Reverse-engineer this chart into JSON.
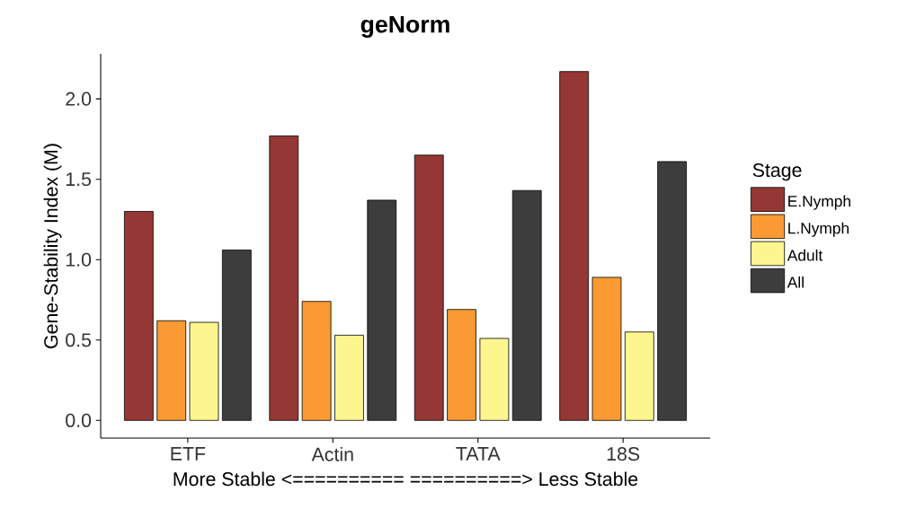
{
  "chart_data": {
    "type": "bar",
    "title": "geNorm",
    "xlabel": "More Stable <========== ==========> Less Stable",
    "ylabel": "Gene-Stability Index (M)",
    "legend_title": "Stage",
    "categories": [
      "ETF",
      "Actin",
      "TATA",
      "18S"
    ],
    "series": [
      {
        "name": "E.Nymph",
        "color": "#953735",
        "values": [
          1.3,
          1.77,
          1.65,
          2.17
        ]
      },
      {
        "name": "L.Nymph",
        "color": "#fb9a33",
        "values": [
          0.62,
          0.74,
          0.69,
          0.89
        ]
      },
      {
        "name": "Adult",
        "color": "#fdf68f",
        "values": [
          0.61,
          0.53,
          0.51,
          0.55
        ]
      },
      {
        "name": "All",
        "color": "#3d3d3d",
        "values": [
          1.06,
          1.37,
          1.43,
          1.61
        ]
      }
    ],
    "ylim": [
      -0.11,
      2.28
    ],
    "yticks": [
      {
        "value": 0,
        "label": "0.0"
      },
      {
        "value": 0.5,
        "label": "0.5"
      },
      {
        "value": 1,
        "label": "1.0"
      },
      {
        "value": 1.5,
        "label": "1.5"
      },
      {
        "value": 2,
        "label": "2.0"
      }
    ],
    "grid": false,
    "legend": "right"
  }
}
